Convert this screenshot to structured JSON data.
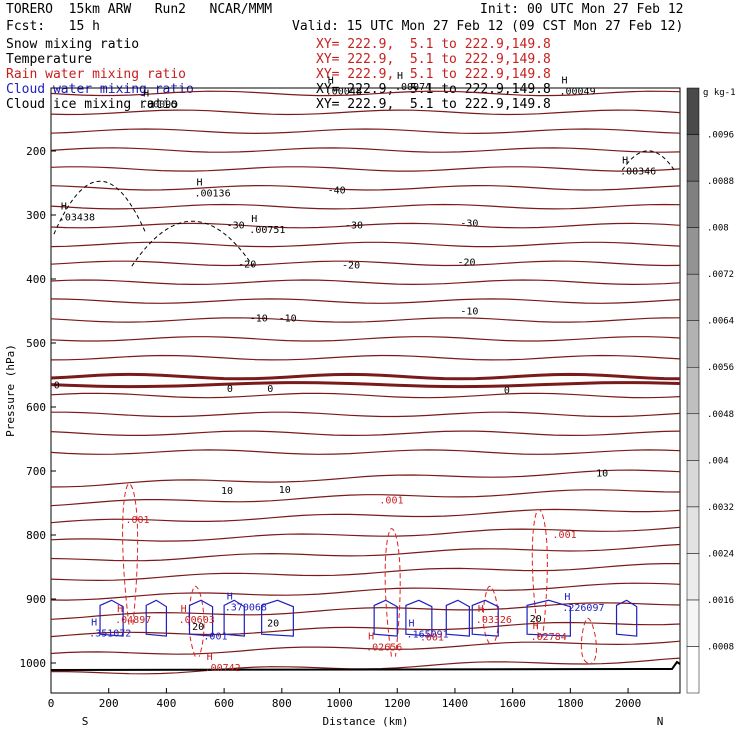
{
  "header": {
    "model": "TORERO  15km ARW   Run2   NCAR/MMM",
    "init": "Init: 00 UTC Mon 27 Feb 12",
    "fcst": "Fcst:   15 h",
    "valid": "Valid: 15 UTC Mon 27 Feb 12 (09 CST Mon 27 Feb 12)"
  },
  "legend": [
    {
      "name": "Snow mixing ratio",
      "xy": "",
      "color": "#000000"
    },
    {
      "name": "Temperature",
      "xy": "XY= 222.9,  5.1 to 222.9,149.8",
      "color": "#c82020"
    },
    {
      "name": "Rain water mixing ratio",
      "xy": "XY= 222.9,  5.1 to 222.9,149.8",
      "color": "#c82020"
    },
    {
      "name": "Cloud water mixing ratio",
      "xy": "XY= 222.9,  5.1 to 222.9,149.8",
      "color": "#2020c0"
    },
    {
      "name": "Cloud ice mixing ratio",
      "xy": "XY= 222.9,  5.1 to 222.9,149.8",
      "color": "#000000"
    }
  ],
  "legend_first_xy": "XY= 222.9,  5.1 to 222.9,149.8",
  "chart_data": {
    "type": "cross-section contour",
    "xlabel": "Distance (km)",
    "ylabel": "Pressure (hPa)",
    "xlim": [
      0,
      2180
    ],
    "ylim": [
      1050,
      100
    ],
    "x_ticks": [
      0,
      200,
      400,
      600,
      800,
      1000,
      1200,
      1400,
      1600,
      1800,
      2000
    ],
    "y_ticks": [
      200,
      300,
      400,
      500,
      600,
      700,
      800,
      900,
      1000
    ],
    "end_labels": {
      "left": "S",
      "right": "N"
    },
    "temperature_contours": [
      {
        "value": "-40",
        "labels": [
          {
            "x": 990,
            "p": 260
          }
        ]
      },
      {
        "value": "-30",
        "labels": [
          {
            "x": 640,
            "p": 315
          },
          {
            "x": 1050,
            "p": 315
          },
          {
            "x": 1450,
            "p": 312
          }
        ]
      },
      {
        "value": "-20",
        "labels": [
          {
            "x": 680,
            "p": 376
          },
          {
            "x": 1040,
            "p": 377
          },
          {
            "x": 1440,
            "p": 373
          }
        ]
      },
      {
        "value": "-10",
        "labels": [
          {
            "x": 720,
            "p": 460
          },
          {
            "x": 820,
            "p": 460
          },
          {
            "x": 1450,
            "p": 449
          }
        ]
      },
      {
        "value": "0",
        "labels": [
          {
            "x": 20,
            "p": 565
          },
          {
            "x": 620,
            "p": 570
          },
          {
            "x": 760,
            "p": 570
          },
          {
            "x": 1580,
            "p": 573
          }
        ]
      },
      {
        "value": "10",
        "labels": [
          {
            "x": 610,
            "p": 730
          },
          {
            "x": 810,
            "p": 728
          },
          {
            "x": 1910,
            "p": 702
          }
        ]
      },
      {
        "value": "20",
        "labels": [
          {
            "x": 510,
            "p": 942
          },
          {
            "x": 770,
            "p": 937
          },
          {
            "x": 1680,
            "p": 930
          }
        ]
      }
    ],
    "field_maxima": [
      {
        "label": ".00095",
        "x": 340,
        "p": 124,
        "color": "#000000"
      },
      {
        "label": ".00136",
        "x": 525,
        "p": 263,
        "color": "#000000"
      },
      {
        "label": ".03438",
        "x": 55,
        "p": 301,
        "color": "#000000"
      },
      {
        "label": ".00751",
        "x": 715,
        "p": 320,
        "color": "#000000"
      },
      {
        "label": ".00346",
        "x": 2000,
        "p": 229,
        "color": "#000000"
      },
      {
        "label": ".00048",
        "x": 980,
        "p": 104,
        "color": "#000000"
      },
      {
        "label": ".00074",
        "x": 1220,
        "p": 97,
        "color": "#000000"
      },
      {
        "label": ".00049",
        "x": 1790,
        "p": 104,
        "color": "#000000"
      },
      {
        "label": ".04897",
        "x": 250,
        "p": 930,
        "color": "#c82020"
      },
      {
        "label": ".00603",
        "x": 470,
        "p": 930,
        "color": "#c82020"
      },
      {
        "label": ".00742",
        "x": 560,
        "p": 1005,
        "color": "#c82020"
      },
      {
        "label": ".02656",
        "x": 1120,
        "p": 973,
        "color": "#c82020"
      },
      {
        "label": ".03326",
        "x": 1500,
        "p": 930,
        "color": "#c82020"
      },
      {
        "label": ".02784",
        "x": 1690,
        "p": 956,
        "color": "#c82020"
      },
      {
        "label": ".351072",
        "x": 160,
        "p": 951,
        "color": "#2020c0"
      },
      {
        "label": ".370068",
        "x": 630,
        "p": 910,
        "color": "#2020c0"
      },
      {
        "label": ".165091",
        "x": 1260,
        "p": 952,
        "color": "#2020c0"
      },
      {
        "label": ".226097",
        "x": 1800,
        "p": 911,
        "color": "#2020c0"
      }
    ],
    "rain_labels": [
      {
        "label": ".001",
        "x": 300,
        "p": 781
      },
      {
        "label": ".001",
        "x": 1180,
        "p": 751
      },
      {
        "label": ".001",
        "x": 1780,
        "p": 805
      },
      {
        "label": ".001",
        "x": 1320,
        "p": 965
      }
    ],
    "cloud_water_labels": [
      {
        "label": ".001",
        "x": 570,
        "p": 963
      }
    ],
    "colorbar": {
      "unit": "g kg-1",
      "ticks": [
        ".0008",
        ".0016",
        ".0024",
        ".0032",
        ".004",
        ".0048",
        ".0056",
        ".0064",
        ".0072",
        ".008",
        ".0088",
        ".0096"
      ],
      "colors": [
        "#ffffff",
        "#f6f6f6",
        "#ececec",
        "#e2e2e2",
        "#d8d8d8",
        "#cccccc",
        "#bfbfbf",
        "#b2b2b2",
        "#a3a3a3",
        "#939393",
        "#808080",
        "#6a6a6a",
        "#4a4a4a"
      ]
    }
  }
}
